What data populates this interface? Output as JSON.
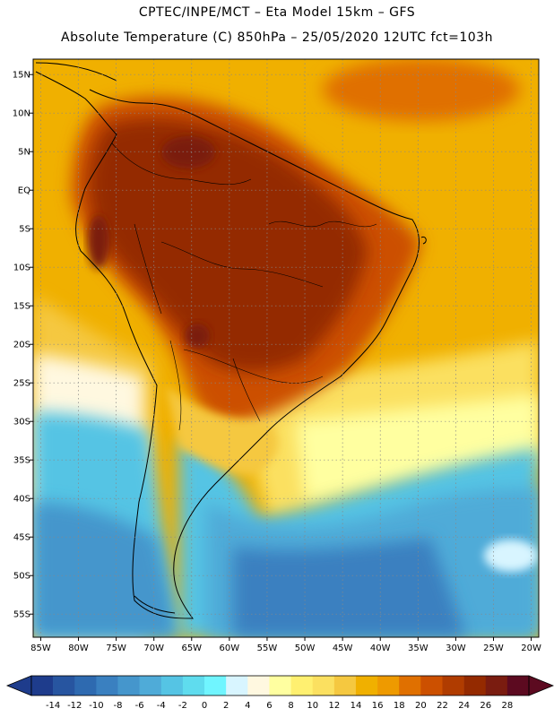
{
  "header": {
    "line1": "CPTEC/INPE/MCT –  Eta Model 15km – GFS",
    "line2": "Absolute Temperature (C) 850hPa – 25/05/2020 12UTC fct=103h"
  },
  "map": {
    "lon_range": [
      -86,
      -19
    ],
    "lat_range": [
      -58,
      17
    ],
    "lat_labels": [
      "15N",
      "10N",
      "5N",
      "EQ",
      "5S",
      "10S",
      "15S",
      "20S",
      "25S",
      "30S",
      "35S",
      "40S",
      "45S",
      "50S",
      "55S"
    ],
    "lat_values": [
      15,
      10,
      5,
      0,
      -5,
      -10,
      -15,
      -20,
      -25,
      -30,
      -35,
      -40,
      -45,
      -50,
      -55
    ],
    "lon_labels": [
      "85W",
      "80W",
      "75W",
      "70W",
      "65W",
      "60W",
      "55W",
      "50W",
      "45W",
      "40W",
      "35W",
      "30W",
      "25W",
      "20W"
    ],
    "lon_values": [
      -85,
      -80,
      -75,
      -70,
      -65,
      -60,
      -55,
      -50,
      -45,
      -40,
      -35,
      -30,
      -25,
      -20
    ],
    "colors": {
      "ocean_warm": "#f0b000",
      "land_hot": "#8a3010",
      "cold": "#4ab0d8"
    }
  },
  "colorbar": {
    "labels": [
      "-14",
      "-12",
      "-10",
      "-8",
      "-6",
      "-4",
      "-2",
      "0",
      "2",
      "4",
      "6",
      "8",
      "10",
      "12",
      "14",
      "16",
      "18",
      "20",
      "22",
      "24",
      "26",
      "28"
    ],
    "colors": [
      "#1e3c8c",
      "#2755a0",
      "#2e6ab0",
      "#3a80c0",
      "#4596cc",
      "#4fabd8",
      "#55c4e4",
      "#5fdcee",
      "#70f5ff",
      "#d8f5ff",
      "#fff8e0",
      "#ffffa0",
      "#fff070",
      "#fbe060",
      "#f5c840",
      "#f0b000",
      "#ee9a00",
      "#e07000",
      "#cc5000",
      "#b03c00",
      "#942a00",
      "#7a1c10",
      "#5c0a20"
    ]
  }
}
